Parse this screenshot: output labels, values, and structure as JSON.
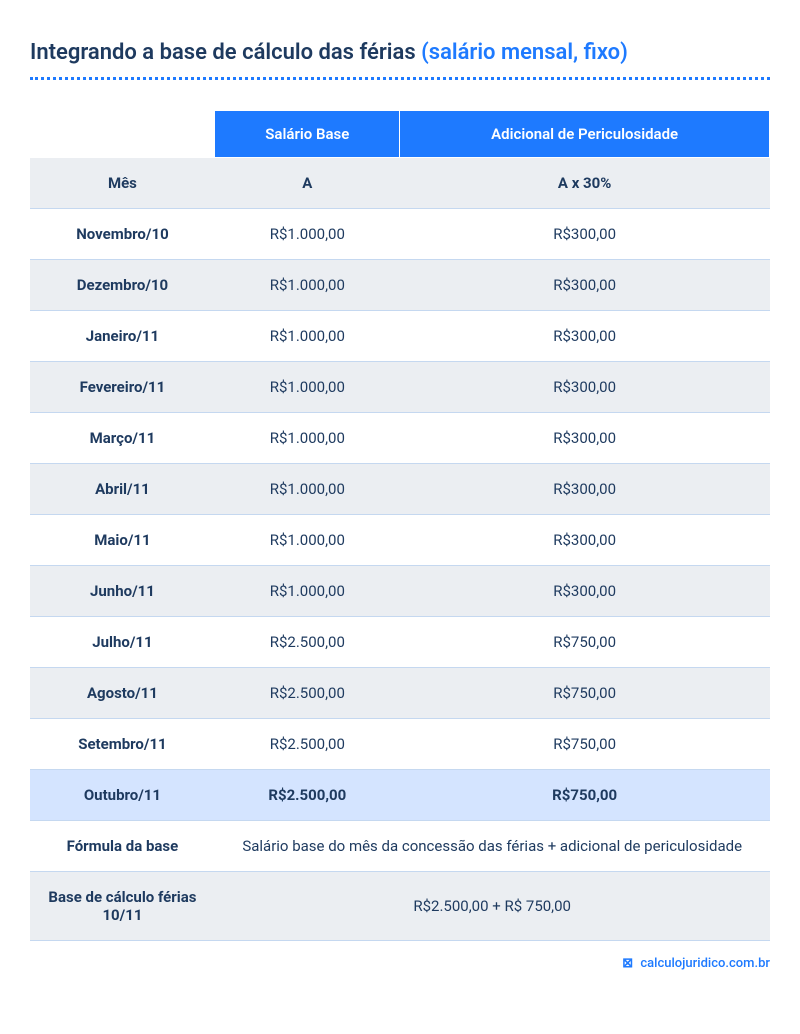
{
  "title": {
    "main": "Integrando a base de cálculo das férias",
    "highlight": "(salário mensal, fixo)"
  },
  "colors": {
    "primary": "#1e7aff",
    "text_dark": "#1e3a5f",
    "row_even": "#ebeef2",
    "row_odd": "#ffffff",
    "row_highlight": "#d4e4ff",
    "border": "#c5d8f0"
  },
  "table": {
    "headers": {
      "col1": "",
      "col2": "Salário Base",
      "col3": "Adicional de Periculosidade"
    },
    "subheader": {
      "col1": "Mês",
      "col2": "A",
      "col3": "A x 30%"
    },
    "rows": [
      {
        "month": "Novembro/10",
        "base": "R$1.000,00",
        "adicional": "R$300,00"
      },
      {
        "month": "Dezembro/10",
        "base": "R$1.000,00",
        "adicional": "R$300,00"
      },
      {
        "month": "Janeiro/11",
        "base": "R$1.000,00",
        "adicional": "R$300,00"
      },
      {
        "month": "Fevereiro/11",
        "base": "R$1.000,00",
        "adicional": "R$300,00"
      },
      {
        "month": "Março/11",
        "base": "R$1.000,00",
        "adicional": "R$300,00"
      },
      {
        "month": "Abril/11",
        "base": "R$1.000,00",
        "adicional": "R$300,00"
      },
      {
        "month": "Maio/11",
        "base": "R$1.000,00",
        "adicional": "R$300,00"
      },
      {
        "month": "Junho/11",
        "base": "R$1.000,00",
        "adicional": "R$300,00"
      },
      {
        "month": "Julho/11",
        "base": "R$2.500,00",
        "adicional": "R$750,00"
      },
      {
        "month": "Agosto/11",
        "base": "R$2.500,00",
        "adicional": "R$750,00"
      },
      {
        "month": "Setembro/11",
        "base": "R$2.500,00",
        "adicional": "R$750,00"
      },
      {
        "month": "Outubro/11",
        "base": "R$2.500,00",
        "adicional": "R$750,00",
        "highlight": true
      }
    ],
    "formula": {
      "label": "Fórmula da base",
      "value": "Salário base do mês da concessão das férias + adicional de periculosidade"
    },
    "result": {
      "label": "Base de cálculo férias 10/11",
      "value": "R$2.500,00 + R$ 750,00"
    }
  },
  "footer": {
    "icon": "⊠",
    "text": "calculojuridico.com.br"
  }
}
